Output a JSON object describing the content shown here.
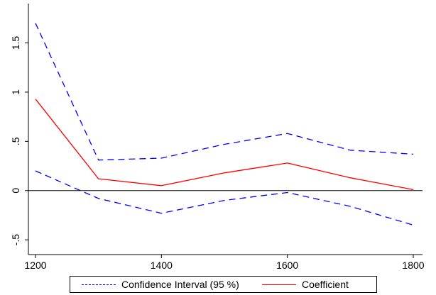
{
  "chart_data": {
    "type": "line",
    "title": "",
    "xlabel": "",
    "ylabel": "",
    "x": [
      1200,
      1300,
      1400,
      1500,
      1600,
      1700,
      1800
    ],
    "xlim": [
      1200,
      1800
    ],
    "ylim": [
      -0.65,
      1.9
    ],
    "xticks": [
      {
        "value": 1200,
        "label": "1200"
      },
      {
        "value": 1400,
        "label": "1400"
      },
      {
        "value": 1600,
        "label": "1600"
      },
      {
        "value": 1800,
        "label": "1800"
      }
    ],
    "yticks": [
      {
        "value": -0.5,
        "label": "-.5"
      },
      {
        "value": 0,
        "label": "0"
      },
      {
        "value": 0.5,
        "label": ".5"
      },
      {
        "value": 1,
        "label": "1"
      },
      {
        "value": 1.5,
        "label": "1.5"
      }
    ],
    "reference_line": 0,
    "grid": false,
    "legend_position": "bottom",
    "series": [
      {
        "key": "ci-upper",
        "values": [
          1.7,
          0.31,
          0.33,
          0.47,
          0.58,
          0.41,
          0.37
        ],
        "color": "#0000ff",
        "style": "dashed"
      },
      {
        "key": "ci-lower",
        "values": [
          0.2,
          -0.08,
          -0.23,
          -0.1,
          -0.02,
          -0.16,
          -0.35
        ],
        "color": "#0000ff",
        "style": "dashed"
      },
      {
        "key": "coefficient",
        "values": [
          0.93,
          0.12,
          0.05,
          0.18,
          0.28,
          0.13,
          0.01
        ],
        "color": "#ff0000",
        "style": "solid"
      }
    ],
    "legend": [
      {
        "label": "Confidence Interval (95 %)",
        "color": "#0000ff",
        "style": "dashed"
      },
      {
        "label": "Coefficient",
        "color": "#ff0000",
        "style": "solid"
      }
    ]
  }
}
